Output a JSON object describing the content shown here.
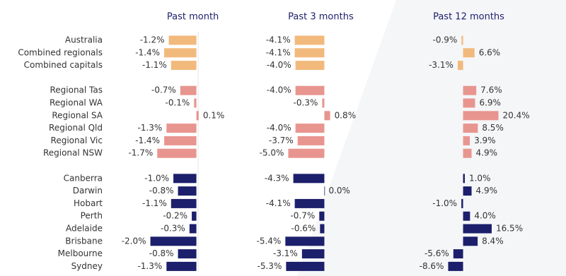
{
  "chart_data": {
    "type": "bar",
    "orientation": "horizontal",
    "categories": [
      "Australia",
      "Combined regionals",
      "Combined capitals",
      "Regional Tas",
      "Regional WA",
      "Regional SA",
      "Regional Qld",
      "Regional Vic",
      "Regional NSW",
      "Canberra",
      "Darwin",
      "Hobart",
      "Perth",
      "Adelaide",
      "Brisbane",
      "Melbourne",
      "Sydney"
    ],
    "bar_colors": [
      "#f2b97c",
      "#f2b97c",
      "#f2b97c",
      "#e8958f",
      "#e8958f",
      "#e8958f",
      "#e8958f",
      "#e8958f",
      "#e8958f",
      "#1c1f6b",
      "#1c1f6b",
      "#1c1f6b",
      "#1c1f6b",
      "#1c1f6b",
      "#1c1f6b",
      "#1c1f6b",
      "#1c1f6b"
    ],
    "series": [
      {
        "name": "Past month",
        "xlim": [
          -4.2,
          1.95
        ],
        "values": [
          -1.2,
          -1.4,
          -1.1,
          -0.7,
          -0.1,
          0.1,
          -1.3,
          -1.4,
          -1.7,
          -1.0,
          -0.8,
          -1.1,
          -0.2,
          -0.3,
          -2.0,
          -0.8,
          -1.3
        ],
        "value_labels": [
          "-1.2%",
          "-1.4%",
          "-1.1%",
          "-0.7%",
          "-0.1%",
          "0.1%",
          "-1.3%",
          "-1.4%",
          "-1.7%",
          "-1.0%",
          "-0.8%",
          "-1.1%",
          "-0.2%",
          "-0.3%",
          "-2.0%",
          "-0.8%",
          "-1.3%"
        ]
      },
      {
        "name": "Past 3 months",
        "xlim": [
          -12,
          7.6
        ],
        "values": [
          -4.1,
          -4.1,
          -4.0,
          -4.0,
          -0.3,
          0.8,
          -4.0,
          -3.7,
          -5.0,
          -4.3,
          0.0,
          -4.1,
          -0.7,
          -0.6,
          -5.4,
          -3.1,
          -5.3
        ],
        "value_labels": [
          "-4.1%",
          "-4.1%",
          "-4.0%",
          "-4.0%",
          "-0.3%",
          "0.8%",
          "-4.0%",
          "-3.7%",
          "-5.0%",
          "-4.3%",
          "0.0%",
          "-4.1%",
          "-0.7%",
          "-0.6%",
          "-5.4%",
          "-3.1%",
          "-5.3%"
        ]
      },
      {
        "name": "Past 12 months",
        "xlim": [
          -30,
          51.6
        ],
        "values": [
          -0.9,
          6.6,
          -3.1,
          7.6,
          6.9,
          20.4,
          8.5,
          3.9,
          4.9,
          1.0,
          4.9,
          -1.0,
          4.0,
          16.5,
          8.4,
          -5.6,
          -8.6
        ],
        "value_labels": [
          "-0.9%",
          "6.6%",
          "-3.1%",
          "7.6%",
          "6.9%",
          "20.4%",
          "8.5%",
          "3.9%",
          "4.9%",
          "1.0%",
          "4.9%",
          "-1.0%",
          "4.0%",
          "16.5%",
          "8.4%",
          "-5.6%",
          "-8.6%"
        ]
      }
    ]
  }
}
